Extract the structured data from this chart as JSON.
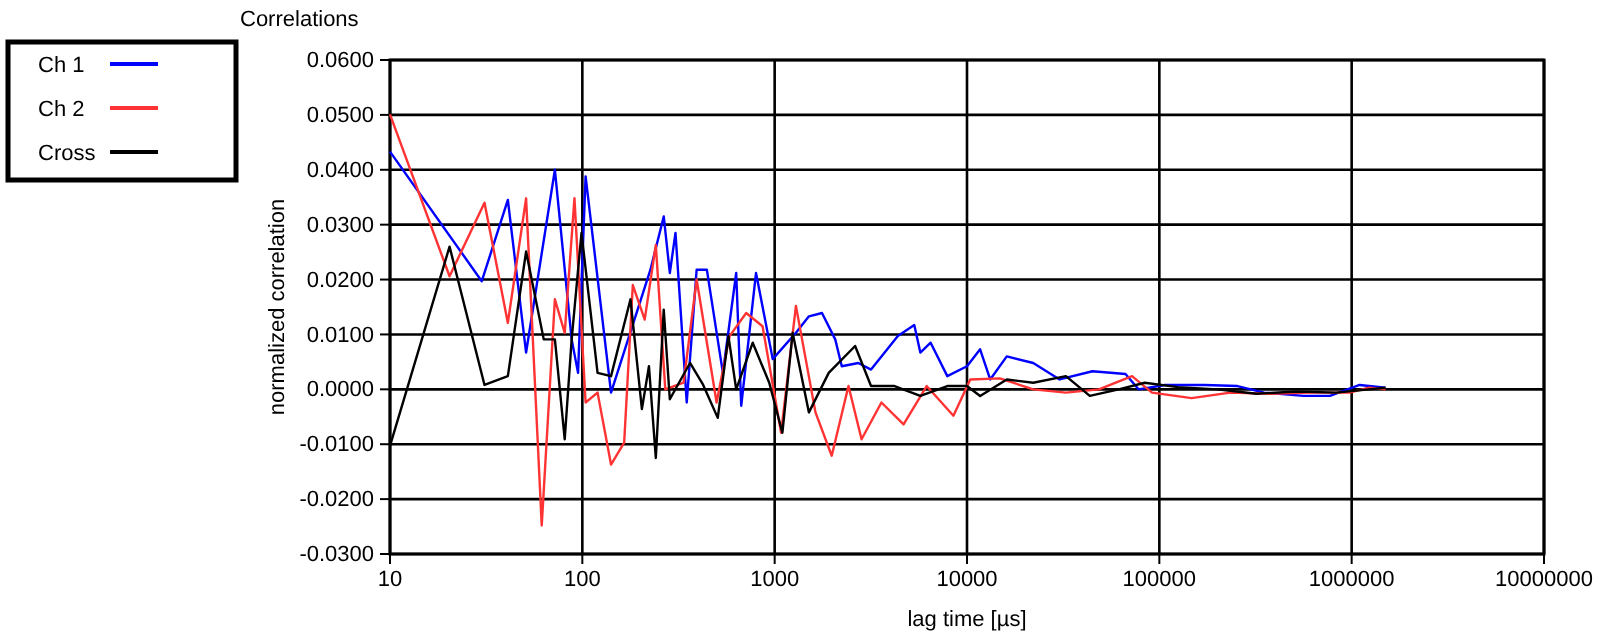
{
  "chart_data": {
    "type": "line",
    "title": "Correlations",
    "xlabel": "lag time [µs]",
    "ylabel": "normalized correlation",
    "log": "x",
    "grid": true,
    "legend": "top left",
    "line_style": "solid",
    "marker": "none",
    "xlim": [
      10,
      10000000
    ],
    "xticks": [
      10,
      100,
      1000,
      10000,
      100000,
      1000000,
      10000000
    ],
    "ylim": [
      -0.03,
      0.06
    ],
    "yticks": [
      {
        "value": -0.03,
        "label": "-0.0300"
      },
      {
        "value": -0.02,
        "label": "-0.0200"
      },
      {
        "value": -0.01,
        "label": "-0.0100"
      },
      {
        "value": 0,
        "label": "0.0000"
      },
      {
        "value": 0.01,
        "label": "0.0100"
      },
      {
        "value": 0.02,
        "label": "0.0200"
      },
      {
        "value": 0.03,
        "label": "0.0300"
      },
      {
        "value": 0.04,
        "label": "0.0400"
      },
      {
        "value": 0.05,
        "label": "0.0500"
      },
      {
        "value": 0.06,
        "label": "0.0600"
      }
    ],
    "series": [
      {
        "name": "Ch 1",
        "color": "#0000ff",
        "x": [
          10,
          30,
          41,
          51,
          72,
          88,
          95,
          104,
          141,
          226,
          265,
          285,
          305,
          349,
          393,
          444,
          538,
          631,
          670,
          800,
          977,
          1290,
          1507,
          1762,
          2065,
          2233,
          2722,
          3170,
          4370,
          5320,
          5720,
          6470,
          7900,
          10000,
          11700,
          13200,
          16100,
          22100,
          30300,
          44900,
          66700,
          78000,
          107000,
          172000,
          255000,
          350000,
          562000,
          771000,
          1100000,
          1500000
        ],
        "values": [
          0.0433,
          0.0197,
          0.0345,
          0.0067,
          0.04,
          0.0091,
          0.003,
          0.0388,
          -0.0006,
          0.0218,
          0.0315,
          0.0212,
          0.0285,
          -0.0024,
          0.0218,
          0.0218,
          0.003,
          0.0212,
          -0.003,
          0.0212,
          0.0055,
          0.0103,
          0.0133,
          0.0139,
          0.0091,
          0.0042,
          0.0048,
          0.0036,
          0.0097,
          0.0117,
          0.0067,
          0.0085,
          0.0024,
          0.0042,
          0.0073,
          0.0018,
          0.006,
          0.0048,
          0.0018,
          0.0033,
          0.0028,
          0,
          0.0008,
          0.0008,
          0.0006,
          -0.0006,
          -0.0012,
          -0.0012,
          0.0008,
          0.0003
        ]
      },
      {
        "name": "Ch 2",
        "color": "#ff3333",
        "x": [
          10,
          20.4,
          31,
          41,
          51,
          61.5,
          72,
          81,
          91,
          104,
          120,
          141,
          165,
          183,
          211,
          241,
          270,
          336,
          393,
          499,
          583,
          711,
          865,
          1080,
          1290,
          1630,
          1980,
          2420,
          2830,
          3590,
          4680,
          6170,
          8500,
          10400,
          14800,
          22100,
          32700,
          48500,
          72100,
          91600,
          147000,
          234000,
          378000,
          608000,
          977000,
          1230000,
          1500000
        ],
        "values": [
          0.0501,
          0.0206,
          0.034,
          0.0121,
          0.0348,
          -0.0248,
          0.0164,
          0.0103,
          0.0348,
          -0.0024,
          -0.0006,
          -0.0137,
          -0.0097,
          0.019,
          0.0127,
          0.0263,
          0,
          0.0012,
          0.02,
          -0.0024,
          0.0097,
          0.0139,
          0.0115,
          -0.0079,
          0.0152,
          -0.0042,
          -0.0121,
          0.0006,
          -0.0091,
          -0.0024,
          -0.0064,
          0.0006,
          -0.0048,
          0.0018,
          0.002,
          0,
          -0.0006,
          0,
          0.0024,
          -0.0006,
          -0.0016,
          -0.0006,
          -0.0008,
          -0.0006,
          -0.0006,
          0.0003,
          0
        ]
      },
      {
        "name": "Cross",
        "color": "#000000",
        "x": [
          10,
          20.4,
          31,
          41,
          51,
          63,
          72,
          81,
          88,
          99,
          120,
          141,
          178,
          204,
          222,
          241,
          265,
          285,
          363,
          425,
          506,
          575,
          631,
          769,
          937,
          1097,
          1240,
          1507,
          1910,
          2620,
          3170,
          4200,
          5720,
          7900,
          10000,
          11700,
          16100,
          22100,
          32700,
          43500,
          61500,
          84000,
          125000,
          200000,
          320000,
          516000,
          830000,
          1230000,
          1500000
        ],
        "values": [
          -0.0103,
          0.026,
          0.0008,
          0.0024,
          0.0251,
          0.0091,
          0.0091,
          -0.0091,
          0.0091,
          0.0285,
          0.003,
          0.0024,
          0.0164,
          -0.0036,
          0.0042,
          -0.0125,
          0.0145,
          -0.0018,
          0.0048,
          0.0008,
          -0.0052,
          0.0097,
          0,
          0.0085,
          0.0012,
          -0.0079,
          0.0103,
          -0.0042,
          0.003,
          0.0079,
          0.0006,
          0.0006,
          -0.0012,
          0.0006,
          0.0006,
          -0.0012,
          0.0018,
          0.0012,
          0.0024,
          -0.0012,
          0,
          0.0012,
          0.0004,
          0,
          -0.0008,
          -0.0004,
          -0.0006,
          0,
          0.0003
        ]
      }
    ]
  }
}
